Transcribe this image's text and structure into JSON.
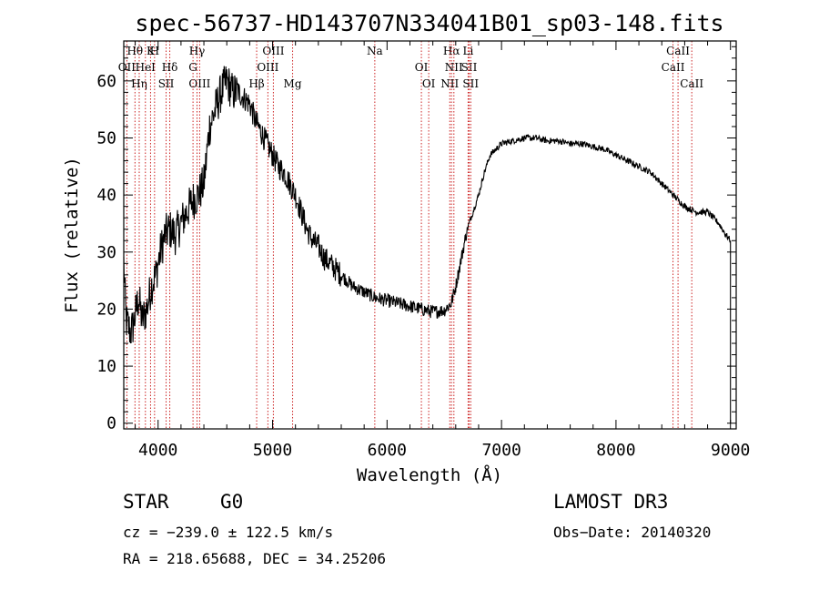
{
  "chart_data": {
    "type": "line",
    "title": "spec-56737-HD143707N334041B01_sp03-148.fits",
    "xlabel": "Wavelength (Å)",
    "ylabel": "Flux (relative)",
    "xlim": [
      3700,
      9050
    ],
    "ylim": [
      -1,
      67
    ],
    "xticks": [
      4000,
      5000,
      6000,
      7000,
      8000,
      9000
    ],
    "yticks": [
      0,
      10,
      20,
      30,
      40,
      50,
      60
    ],
    "series": [
      {
        "name": "flux",
        "x": [
          3700,
          3720,
          3740,
          3760,
          3780,
          3800,
          3830,
          3860,
          3900,
          3940,
          3980,
          4020,
          4060,
          4100,
          4150,
          4200,
          4250,
          4300,
          4350,
          4400,
          4450,
          4500,
          4550,
          4600,
          4650,
          4700,
          4750,
          4800,
          4850,
          4900,
          4950,
          5000,
          5050,
          5100,
          5150,
          5200,
          5250,
          5300,
          5350,
          5400,
          5450,
          5500,
          5600,
          5700,
          5800,
          5900,
          6000,
          6100,
          6200,
          6300,
          6400,
          6500,
          6560,
          6600,
          6650,
          6700,
          6750,
          6800,
          6850,
          6900,
          6950,
          7000,
          7100,
          7200,
          7300,
          7400,
          7500,
          7600,
          7700,
          7800,
          7900,
          8000,
          8100,
          8200,
          8300,
          8400,
          8500,
          8550,
          8600,
          8700,
          8800,
          8900,
          8960,
          9000
        ],
        "y": [
          28,
          18,
          17,
          16,
          17,
          19,
          22,
          18,
          20,
          24,
          26,
          30,
          33,
          34,
          33,
          35,
          37,
          39,
          40,
          42,
          52,
          55,
          58,
          60,
          58,
          58,
          57,
          56,
          53,
          51,
          49,
          47,
          45,
          44,
          42,
          40,
          37,
          34,
          32,
          31,
          29,
          28,
          26,
          24,
          23,
          22,
          21.5,
          21,
          20.5,
          20,
          19.5,
          19.8,
          21,
          24,
          29,
          34,
          37,
          40,
          44,
          47,
          48,
          49,
          49.5,
          50,
          50,
          49.5,
          49.5,
          49,
          49,
          48.5,
          48,
          47,
          46,
          45,
          44,
          42,
          40,
          39,
          38,
          37,
          37,
          35,
          33,
          32
        ]
      }
    ],
    "lines": [
      {
        "label": "Hθ",
        "wl": 3798
      },
      {
        "label": "OII",
        "wl": 3727
      },
      {
        "label": "Hη",
        "wl": 3835
      },
      {
        "label": "K",
        "wl": 3934
      },
      {
        "label": "HeI",
        "wl": 3889
      },
      {
        "label": "SII",
        "wl": 4070
      },
      {
        "label": "H",
        "wl": 3969
      },
      {
        "label": "Hδ",
        "wl": 4102
      },
      {
        "label": "OIII",
        "wl": 4363
      },
      {
        "label": "Hγ",
        "wl": 4340
      },
      {
        "label": "G",
        "wl": 4305
      },
      {
        "label": "Hβ",
        "wl": 4861
      },
      {
        "label": "OIII",
        "wl": 5007
      },
      {
        "label": "OIII",
        "wl": 4959
      },
      {
        "label": "Mg",
        "wl": 5175
      },
      {
        "label": "Na",
        "wl": 5893
      },
      {
        "label": "OI",
        "wl": 6300
      },
      {
        "label": "OI",
        "wl": 6364
      },
      {
        "label": "Hα",
        "wl": 6563
      },
      {
        "label": "SII",
        "wl": 6717
      },
      {
        "label": "NII",
        "wl": 6548
      },
      {
        "label": "Li",
        "wl": 6708
      },
      {
        "label": "NII",
        "wl": 6584
      },
      {
        "label": "SII",
        "wl": 6731
      },
      {
        "label": "CaII",
        "wl": 8542
      },
      {
        "label": "CaII",
        "wl": 8498
      },
      {
        "label": "CaII",
        "wl": 8662
      }
    ]
  },
  "footer": {
    "object_class": "STAR",
    "subclass": "G0",
    "survey": "LAMOST DR3",
    "cz": "cz = −239.0 ± 122.5 km/s",
    "obs_date": "Obs−Date: 20140320",
    "coords": "RA = 218.65688, DEC =  34.25206"
  },
  "colors": {
    "line_marker": "#cc2222",
    "spectrum": "#000000"
  }
}
